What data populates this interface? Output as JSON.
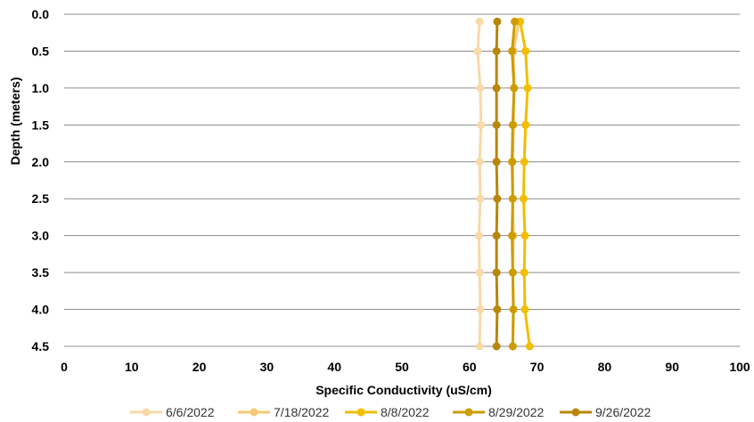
{
  "chart_data": {
    "type": "line",
    "xlabel": "Specific Conductivity (uS/cm)",
    "ylabel": "Depth (meters)",
    "xlim": [
      0,
      100
    ],
    "ylim": [
      0,
      4.5
    ],
    "y_inverted": true,
    "x_ticks": [
      "0",
      "10",
      "20",
      "30",
      "40",
      "50",
      "60",
      "70",
      "80",
      "90",
      "100"
    ],
    "y_ticks": [
      "0.0",
      "0.5",
      "1.0",
      "1.5",
      "2.0",
      "2.5",
      "3.0",
      "3.5",
      "4.0",
      "4.5"
    ],
    "grid": "horizontal",
    "legend_position": "bottom",
    "series": [
      {
        "name": "6/6/2022",
        "color": "#f8d9a8",
        "depth": [
          0.1,
          0.5,
          1.0,
          1.5,
          2.0,
          2.5,
          3.0,
          3.5,
          4.0,
          4.5
        ],
        "values": [
          61.5,
          61.2,
          61.6,
          61.7,
          61.5,
          61.6,
          61.4,
          61.5,
          61.6,
          61.5
        ]
      },
      {
        "name": "7/18/2022",
        "color": "#f6c977",
        "depth": [
          0.1,
          0.5,
          1.0,
          1.5,
          2.0,
          2.5,
          3.0,
          3.5,
          4.0,
          4.5
        ],
        "values": [
          67.3,
          66.5,
          66.6,
          66.5,
          66.4,
          66.4,
          66.5,
          66.4,
          66.5,
          66.4
        ]
      },
      {
        "name": "8/8/2022",
        "color": "#f2be00",
        "depth": [
          0.1,
          0.5,
          1.0,
          1.5,
          2.0,
          2.5,
          3.0,
          3.5,
          4.0,
          4.5
        ],
        "values": [
          67.5,
          68.3,
          68.6,
          68.3,
          68.1,
          68.0,
          68.2,
          68.1,
          68.2,
          68.9
        ]
      },
      {
        "name": "8/29/2022",
        "color": "#cc9c00",
        "depth": [
          0.1,
          0.5,
          1.0,
          1.5,
          2.0,
          2.5,
          3.0,
          3.5,
          4.0,
          4.5
        ],
        "values": [
          66.7,
          66.3,
          66.6,
          66.4,
          66.3,
          66.4,
          66.3,
          66.4,
          66.5,
          66.4
        ]
      },
      {
        "name": "9/26/2022",
        "color": "#b8860b",
        "depth": [
          0.1,
          0.5,
          1.0,
          1.5,
          2.0,
          2.5,
          3.0,
          3.5,
          4.0,
          4.5
        ],
        "values": [
          64.1,
          64.0,
          64.0,
          64.0,
          64.0,
          64.1,
          64.0,
          64.0,
          64.1,
          64.0
        ]
      }
    ]
  }
}
